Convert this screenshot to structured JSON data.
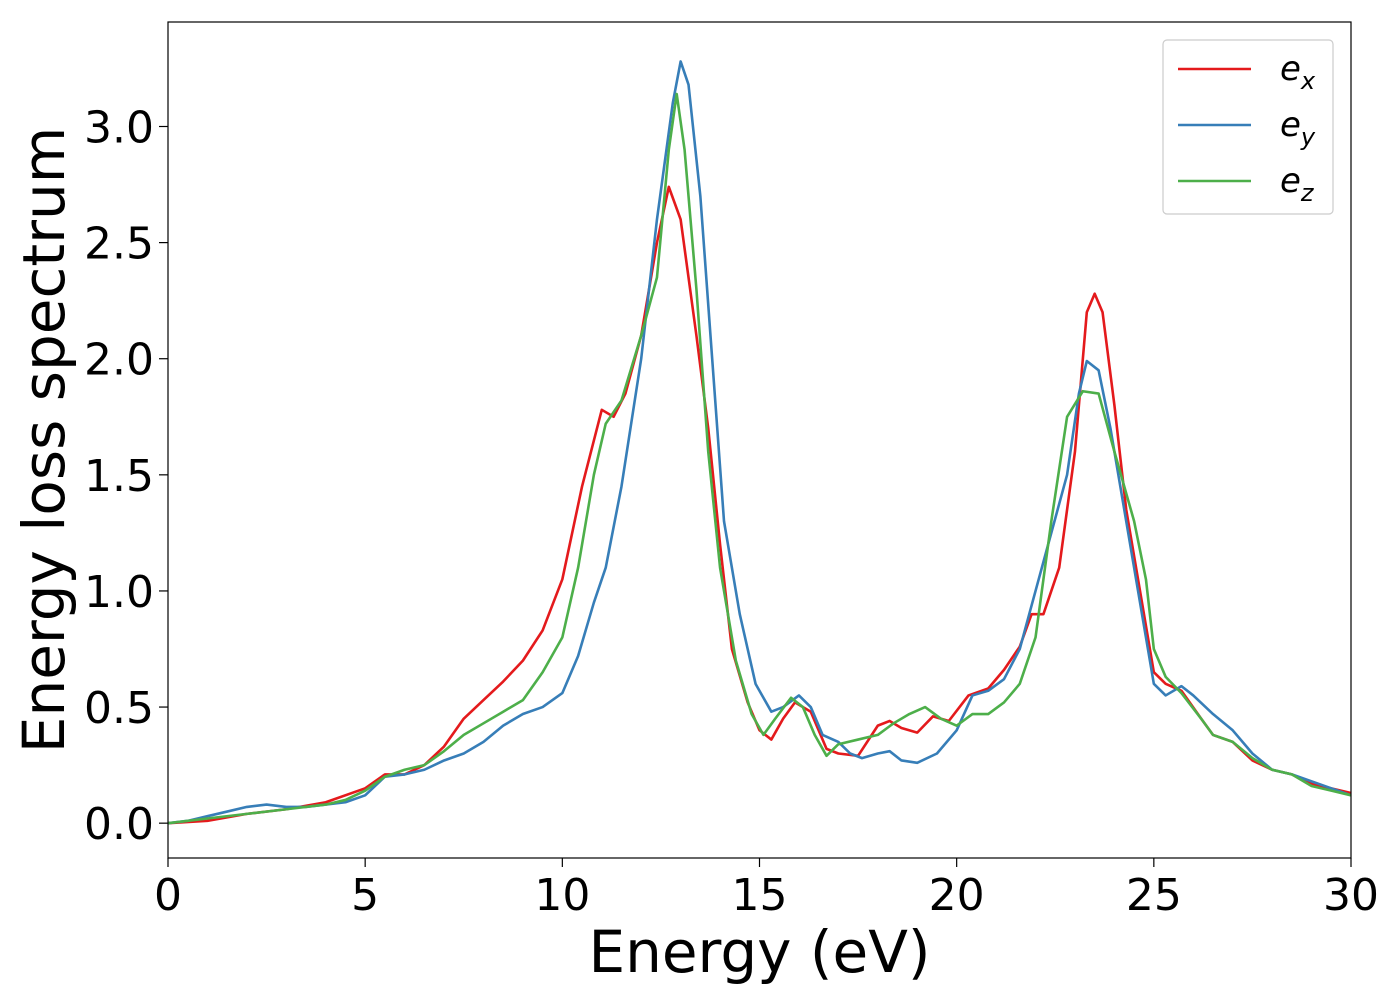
{
  "chart_data": {
    "type": "line",
    "title": "",
    "xlabel": "Energy (eV)",
    "ylabel": "Energy loss spectrum",
    "xlim": [
      0,
      30
    ],
    "ylim": [
      -0.15,
      3.45
    ],
    "x_ticks": [
      0,
      5,
      10,
      15,
      20,
      25,
      30
    ],
    "x_tick_labels": [
      "0",
      "5",
      "10",
      "15",
      "20",
      "25",
      "30"
    ],
    "y_ticks": [
      0.0,
      0.5,
      1.0,
      1.5,
      2.0,
      2.5,
      3.0
    ],
    "y_tick_labels": [
      "0.0",
      "0.5",
      "1.0",
      "1.5",
      "2.0",
      "2.5",
      "3.0"
    ],
    "grid": false,
    "legend": {
      "position": "top-right"
    },
    "series": [
      {
        "name": "e_x",
        "label_base": "e",
        "label_sub": "x",
        "color": "#e41a1c",
        "points": [
          [
            0,
            0.0
          ],
          [
            1,
            0.01
          ],
          [
            2,
            0.04
          ],
          [
            3,
            0.06
          ],
          [
            4,
            0.09
          ],
          [
            5,
            0.15
          ],
          [
            5.5,
            0.21
          ],
          [
            6,
            0.21
          ],
          [
            6.5,
            0.25
          ],
          [
            7,
            0.33
          ],
          [
            7.5,
            0.45
          ],
          [
            8,
            0.53
          ],
          [
            8.5,
            0.61
          ],
          [
            9,
            0.7
          ],
          [
            9.5,
            0.83
          ],
          [
            10,
            1.05
          ],
          [
            10.5,
            1.45
          ],
          [
            11,
            1.78
          ],
          [
            11.3,
            1.75
          ],
          [
            11.6,
            1.85
          ],
          [
            12,
            2.1
          ],
          [
            12.4,
            2.5
          ],
          [
            12.7,
            2.74
          ],
          [
            13,
            2.6
          ],
          [
            13.4,
            2.1
          ],
          [
            13.7,
            1.7
          ],
          [
            14,
            1.2
          ],
          [
            14.3,
            0.75
          ],
          [
            14.7,
            0.52
          ],
          [
            15,
            0.4
          ],
          [
            15.3,
            0.36
          ],
          [
            15.6,
            0.45
          ],
          [
            15.9,
            0.52
          ],
          [
            16.3,
            0.48
          ],
          [
            16.7,
            0.32
          ],
          [
            17,
            0.3
          ],
          [
            17.5,
            0.29
          ],
          [
            18,
            0.42
          ],
          [
            18.3,
            0.44
          ],
          [
            18.6,
            0.41
          ],
          [
            19,
            0.39
          ],
          [
            19.4,
            0.46
          ],
          [
            19.8,
            0.44
          ],
          [
            20.3,
            0.55
          ],
          [
            20.8,
            0.58
          ],
          [
            21.2,
            0.66
          ],
          [
            21.6,
            0.76
          ],
          [
            21.9,
            0.9
          ],
          [
            22.2,
            0.9
          ],
          [
            22.6,
            1.1
          ],
          [
            23,
            1.6
          ],
          [
            23.3,
            2.2
          ],
          [
            23.5,
            2.28
          ],
          [
            23.7,
            2.2
          ],
          [
            24,
            1.8
          ],
          [
            24.3,
            1.35
          ],
          [
            24.7,
            0.95
          ],
          [
            25,
            0.65
          ],
          [
            25.3,
            0.6
          ],
          [
            25.7,
            0.57
          ],
          [
            26.2,
            0.45
          ],
          [
            26.5,
            0.38
          ],
          [
            27,
            0.35
          ],
          [
            27.5,
            0.27
          ],
          [
            28,
            0.23
          ],
          [
            28.5,
            0.21
          ],
          [
            29,
            0.17
          ],
          [
            29.5,
            0.15
          ],
          [
            30,
            0.13
          ]
        ]
      },
      {
        "name": "e_y",
        "label_base": "e",
        "label_sub": "y",
        "color": "#377eb8",
        "points": [
          [
            0,
            0.0
          ],
          [
            0.5,
            0.01
          ],
          [
            1,
            0.03
          ],
          [
            1.5,
            0.05
          ],
          [
            2,
            0.07
          ],
          [
            2.5,
            0.08
          ],
          [
            3,
            0.07
          ],
          [
            3.5,
            0.07
          ],
          [
            4,
            0.08
          ],
          [
            4.5,
            0.09
          ],
          [
            5,
            0.12
          ],
          [
            5.5,
            0.2
          ],
          [
            6,
            0.21
          ],
          [
            6.5,
            0.23
          ],
          [
            7,
            0.27
          ],
          [
            7.5,
            0.3
          ],
          [
            8,
            0.35
          ],
          [
            8.5,
            0.42
          ],
          [
            9,
            0.47
          ],
          [
            9.5,
            0.5
          ],
          [
            10,
            0.56
          ],
          [
            10.4,
            0.72
          ],
          [
            10.8,
            0.95
          ],
          [
            11.1,
            1.1
          ],
          [
            11.5,
            1.45
          ],
          [
            12,
            2.0
          ],
          [
            12.4,
            2.6
          ],
          [
            12.8,
            3.1
          ],
          [
            13,
            3.28
          ],
          [
            13.2,
            3.18
          ],
          [
            13.5,
            2.7
          ],
          [
            13.8,
            2.0
          ],
          [
            14.1,
            1.3
          ],
          [
            14.5,
            0.9
          ],
          [
            14.9,
            0.6
          ],
          [
            15.3,
            0.48
          ],
          [
            15.6,
            0.5
          ],
          [
            16,
            0.55
          ],
          [
            16.3,
            0.5
          ],
          [
            16.6,
            0.38
          ],
          [
            17,
            0.35
          ],
          [
            17.3,
            0.3
          ],
          [
            17.6,
            0.28
          ],
          [
            18,
            0.3
          ],
          [
            18.3,
            0.31
          ],
          [
            18.6,
            0.27
          ],
          [
            19,
            0.26
          ],
          [
            19.5,
            0.3
          ],
          [
            20,
            0.4
          ],
          [
            20.4,
            0.55
          ],
          [
            20.8,
            0.57
          ],
          [
            21.2,
            0.62
          ],
          [
            21.6,
            0.75
          ],
          [
            22,
            1.0
          ],
          [
            22.4,
            1.25
          ],
          [
            22.8,
            1.5
          ],
          [
            23.1,
            1.85
          ],
          [
            23.3,
            1.99
          ],
          [
            23.6,
            1.95
          ],
          [
            23.9,
            1.7
          ],
          [
            24.3,
            1.3
          ],
          [
            24.7,
            0.9
          ],
          [
            25,
            0.6
          ],
          [
            25.3,
            0.55
          ],
          [
            25.7,
            0.59
          ],
          [
            26,
            0.55
          ],
          [
            26.5,
            0.47
          ],
          [
            27,
            0.4
          ],
          [
            27.5,
            0.3
          ],
          [
            28,
            0.23
          ],
          [
            28.5,
            0.21
          ],
          [
            29,
            0.18
          ],
          [
            29.5,
            0.15
          ],
          [
            30,
            0.12
          ]
        ]
      },
      {
        "name": "e_z",
        "label_base": "e",
        "label_sub": "z",
        "color": "#4daf4a",
        "points": [
          [
            0,
            0.0
          ],
          [
            1,
            0.02
          ],
          [
            2,
            0.04
          ],
          [
            3,
            0.06
          ],
          [
            4,
            0.08
          ],
          [
            4.5,
            0.1
          ],
          [
            5,
            0.14
          ],
          [
            5.5,
            0.2
          ],
          [
            6,
            0.23
          ],
          [
            6.5,
            0.25
          ],
          [
            7,
            0.31
          ],
          [
            7.5,
            0.38
          ],
          [
            8,
            0.43
          ],
          [
            8.5,
            0.48
          ],
          [
            9,
            0.53
          ],
          [
            9.5,
            0.65
          ],
          [
            10,
            0.8
          ],
          [
            10.4,
            1.1
          ],
          [
            10.8,
            1.5
          ],
          [
            11.1,
            1.72
          ],
          [
            11.5,
            1.82
          ],
          [
            12,
            2.1
          ],
          [
            12.4,
            2.35
          ],
          [
            12.7,
            2.9
          ],
          [
            12.9,
            3.14
          ],
          [
            13.1,
            2.9
          ],
          [
            13.4,
            2.3
          ],
          [
            13.7,
            1.6
          ],
          [
            14,
            1.1
          ],
          [
            14.4,
            0.7
          ],
          [
            14.8,
            0.47
          ],
          [
            15.1,
            0.38
          ],
          [
            15.4,
            0.45
          ],
          [
            15.8,
            0.54
          ],
          [
            16.1,
            0.5
          ],
          [
            16.4,
            0.38
          ],
          [
            16.7,
            0.29
          ],
          [
            17,
            0.34
          ],
          [
            17.5,
            0.36
          ],
          [
            18,
            0.38
          ],
          [
            18.4,
            0.43
          ],
          [
            18.8,
            0.47
          ],
          [
            19.2,
            0.5
          ],
          [
            19.6,
            0.45
          ],
          [
            20,
            0.42
          ],
          [
            20.4,
            0.47
          ],
          [
            20.8,
            0.47
          ],
          [
            21.2,
            0.52
          ],
          [
            21.6,
            0.6
          ],
          [
            22,
            0.8
          ],
          [
            22.4,
            1.3
          ],
          [
            22.8,
            1.75
          ],
          [
            23.2,
            1.86
          ],
          [
            23.6,
            1.85
          ],
          [
            24,
            1.6
          ],
          [
            24.5,
            1.3
          ],
          [
            24.8,
            1.05
          ],
          [
            25,
            0.75
          ],
          [
            25.3,
            0.63
          ],
          [
            25.7,
            0.56
          ],
          [
            26.2,
            0.45
          ],
          [
            26.5,
            0.38
          ],
          [
            27,
            0.35
          ],
          [
            27.5,
            0.28
          ],
          [
            28,
            0.23
          ],
          [
            28.5,
            0.21
          ],
          [
            29,
            0.16
          ],
          [
            29.5,
            0.14
          ],
          [
            30,
            0.12
          ]
        ]
      }
    ]
  }
}
